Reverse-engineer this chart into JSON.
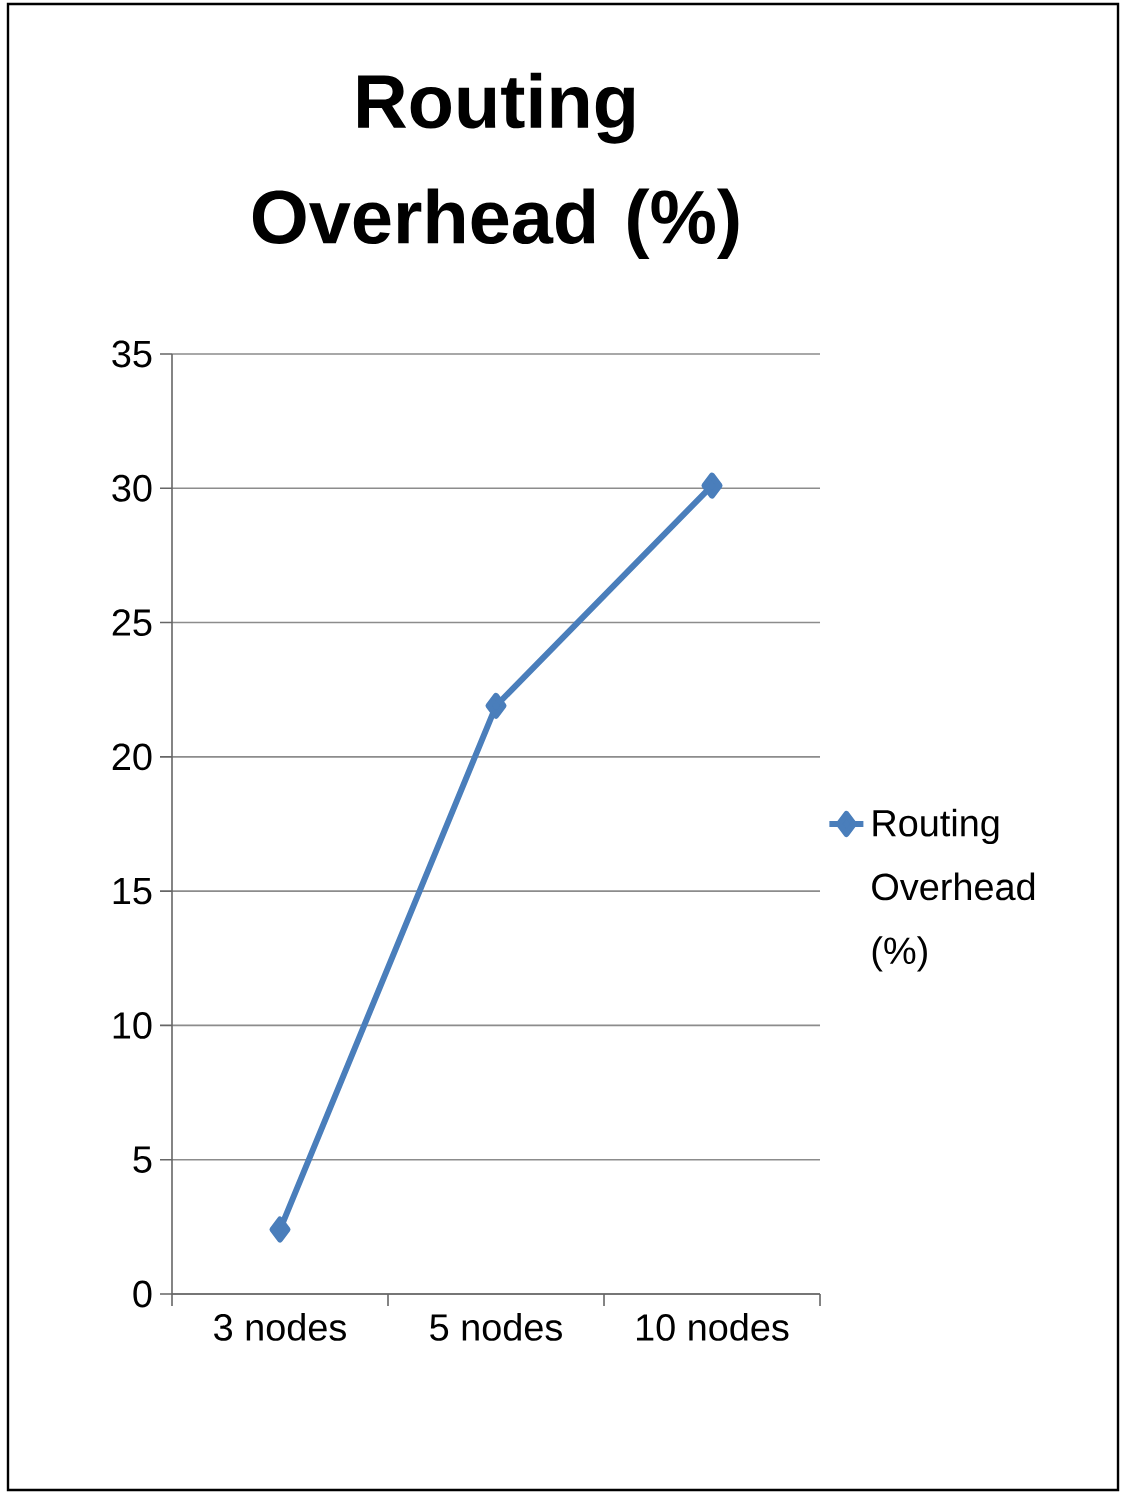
{
  "chart_data": {
    "type": "line",
    "title": "Routing Overhead (%)",
    "categories": [
      "3 nodes",
      "5 nodes",
      "10 nodes"
    ],
    "series": [
      {
        "name": "Routing Overhead (%)",
        "color": "#4a7ebb",
        "values": [
          2.4,
          21.9,
          30.1
        ]
      }
    ],
    "ylim": [
      0,
      35
    ],
    "yticks": [
      0,
      5,
      10,
      15,
      20,
      25,
      30,
      35
    ],
    "grid": "y",
    "legend": "right",
    "marker": "diamond"
  }
}
